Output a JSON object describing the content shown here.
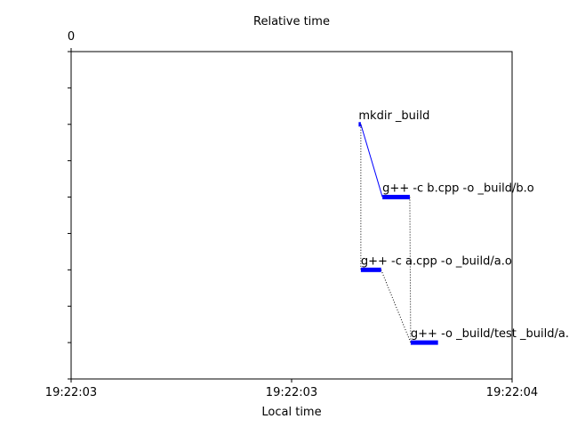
{
  "chart_data": {
    "type": "gantt",
    "title": "Relative time",
    "xlabel": "Local time",
    "ylabel": "",
    "top_axis_tick_label": "0",
    "xlim": [
      0,
      1.0
    ],
    "ylim": [
      0,
      9
    ],
    "x_tick_positions": [
      0,
      0.5,
      1.0
    ],
    "x_tick_labels": [
      "19:22:03",
      "19:22:03",
      "19:22:04"
    ],
    "y_ticks": [
      0,
      1,
      2,
      3,
      4,
      5,
      6,
      7,
      8,
      9
    ],
    "grid": false,
    "bar_color": "#0000ff",
    "tasks": [
      {
        "name": "mkdir _build",
        "start": 0.652,
        "end": 0.657,
        "row": 7
      },
      {
        "name": "g++ -c b.cpp -o _build/b.o",
        "start": 0.706,
        "end": 0.768,
        "row": 5
      },
      {
        "name": "g++ -c a.cpp -o _build/a.o",
        "start": 0.657,
        "end": 0.703,
        "row": 3
      },
      {
        "name": "g++ -o _build/test _build/a.o _build/b.o",
        "start": 0.77,
        "end": 0.832,
        "row": 1
      }
    ],
    "dependencies": [
      {
        "from": 0,
        "to": 1,
        "style": "solid"
      },
      {
        "from": 0,
        "to": 2,
        "style": "dotted"
      },
      {
        "from": 1,
        "to": 3,
        "style": "dotted"
      },
      {
        "from": 2,
        "to": 3,
        "style": "dotted"
      }
    ]
  }
}
